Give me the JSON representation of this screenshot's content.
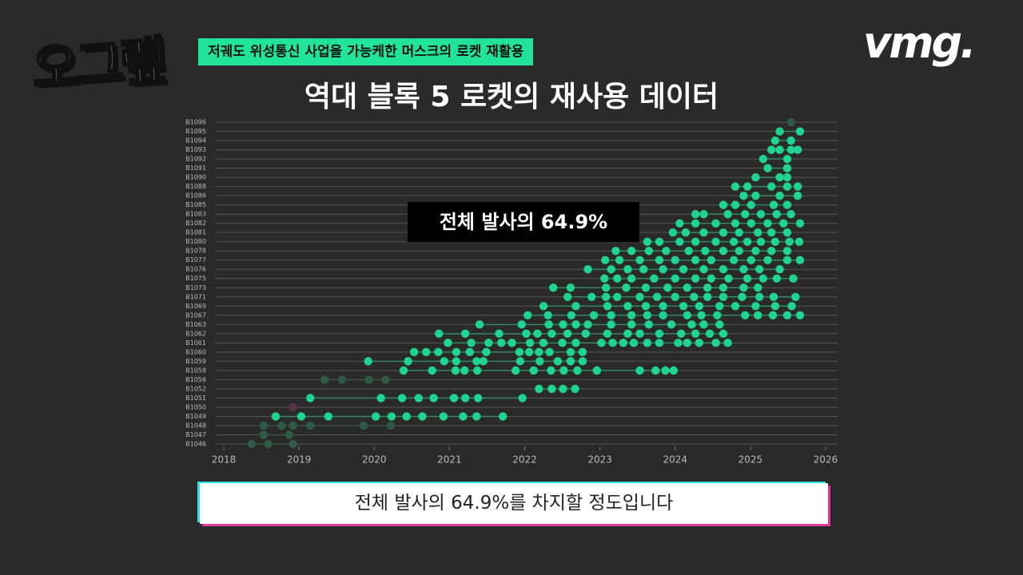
{
  "header": {
    "logo": "오그랲",
    "tag": "저궤도 위성통신 사업을 가능케한 머스크의 로켓 재활용",
    "brand": "vmg."
  },
  "chart_data": {
    "type": "dot-timeline",
    "title": "역대 블록 5 로켓의 재사용 데이터",
    "annotation": "전체 발사의 64.9%",
    "categories": [
      "B1046",
      "B1047",
      "B1048",
      "B1049",
      "B1050",
      "B1051",
      "B1052",
      "B1056",
      "B1058",
      "B1059",
      "B1060",
      "B1061",
      "B1062",
      "B1063",
      "B1067",
      "B1069",
      "B1071",
      "B1073",
      "B1075",
      "B1076",
      "B1077",
      "B1078",
      "B1080",
      "B1081",
      "B1082",
      "B1083",
      "B1085",
      "B1086",
      "B1088",
      "B1090",
      "B1091",
      "B1092",
      "B1093",
      "B1094",
      "B1095",
      "B1096"
    ],
    "values": [
      [
        2018.37,
        2018.59,
        2018.92
      ],
      [
        2018.53,
        2018.87
      ],
      [
        2018.53,
        2018.77,
        2018.92,
        2019.15,
        2019.86,
        2020.22
      ],
      [
        2018.69,
        2019.03,
        2019.39,
        2020.02,
        2020.23,
        2020.43,
        2020.64,
        2020.92,
        2021.18,
        2021.36,
        2021.71
      ],
      [
        2018.92
      ],
      [
        2019.15,
        2020.09,
        2020.37,
        2020.59,
        2020.79,
        2021.06,
        2021.21,
        2021.38,
        2021.97
      ],
      [
        2022.19,
        2022.36,
        2022.51,
        2022.67
      ],
      [
        2019.34,
        2019.57,
        2019.93,
        2020.15
      ],
      [
        2020.39,
        2020.77,
        2021.08,
        2021.2,
        2021.37,
        2021.88,
        2022.12,
        2022.35,
        2022.52,
        2022.7,
        2022.96,
        2023.53,
        2023.74,
        2023.87,
        2023.98
      ],
      [
        2019.92,
        2020.45,
        2020.93,
        2021.09,
        2021.36,
        2021.45,
        2021.94,
        2022.2,
        2022.44,
        2022.61,
        2022.77
      ],
      [
        2020.53,
        2020.69,
        2020.85,
        2021.09,
        2021.27,
        2021.49,
        2021.93,
        2022.06,
        2022.19,
        2022.33,
        2022.61,
        2022.77
      ],
      [
        2020.98,
        2021.29,
        2021.52,
        2021.69,
        2021.83,
        2022.07,
        2022.25,
        2022.5,
        2022.68,
        2023.02,
        2023.17,
        2023.31,
        2023.45,
        2023.63,
        2023.79,
        2024.04,
        2024.16,
        2024.32,
        2024.54,
        2024.7
      ],
      [
        2020.86,
        2021.21,
        2021.66,
        2022.02,
        2022.17,
        2022.36,
        2022.57,
        2022.81,
        2023.1,
        2023.37,
        2023.53,
        2023.79,
        2024.08,
        2024.27,
        2024.46,
        2024.64
      ],
      [
        2021.4,
        2021.96,
        2022.32,
        2022.51,
        2022.68,
        2022.84,
        2023.15,
        2023.42,
        2023.65,
        2023.95,
        2024.22,
        2024.38,
        2024.59
      ],
      [
        2022.04,
        2022.31,
        2022.62,
        2022.92,
        2023.15,
        2023.42,
        2023.63,
        2023.84,
        2024.16,
        2024.35,
        2024.56,
        2024.93,
        2025.1,
        2025.3,
        2025.49,
        2025.66
      ],
      [
        2022.25,
        2022.68,
        2023.1,
        2023.37,
        2023.61,
        2023.84,
        2024.11,
        2024.32,
        2024.59,
        2024.8,
        2025.07,
        2025.33,
        2025.55
      ],
      [
        2022.57,
        2022.89,
        2023.08,
        2023.23,
        2023.53,
        2023.76,
        2024.0,
        2024.25,
        2024.43,
        2024.64,
        2024.89,
        2025.12,
        2025.31,
        2025.6
      ],
      [
        2022.38,
        2022.61,
        2023.08,
        2023.35,
        2023.61,
        2023.9,
        2024.16,
        2024.43,
        2024.64,
        2024.91,
        2025.1
      ],
      [
        2023.06,
        2023.23,
        2023.42,
        2023.72,
        2024.0,
        2024.27,
        2024.48,
        2024.71,
        2024.96,
        2025.17,
        2025.35,
        2025.57
      ],
      [
        2022.84,
        2023.15,
        2023.37,
        2023.58,
        2023.84,
        2024.11,
        2024.38,
        2024.64,
        2024.91,
        2025.12,
        2025.39
      ],
      [
        2023.07,
        2023.26,
        2023.53,
        2023.79,
        2024.0,
        2024.27,
        2024.48,
        2024.78,
        2025.01,
        2025.23,
        2025.49,
        2025.66
      ],
      [
        2023.21,
        2023.42,
        2023.65,
        2023.88,
        2024.18,
        2024.4,
        2024.64,
        2024.85,
        2025.07,
        2025.28,
        2025.49
      ],
      [
        2023.63,
        2023.79,
        2024.06,
        2024.27,
        2024.54,
        2024.78,
        2024.96,
        2025.14,
        2025.33,
        2025.52,
        2025.65
      ],
      [
        2023.97,
        2024.14,
        2024.38,
        2024.64,
        2024.85,
        2025.1,
        2025.28,
        2025.49
      ],
      [
        2024.06,
        2024.27,
        2024.54,
        2024.8,
        2025.01,
        2025.23,
        2025.44,
        2025.66
      ],
      [
        2024.27,
        2024.38,
        2024.7,
        2024.93,
        2025.14,
        2025.35,
        2025.54
      ],
      [
        2024.64,
        2024.8,
        2025.01,
        2025.31,
        2025.49
      ],
      [
        2024.91,
        2025.07,
        2025.39,
        2025.63
      ],
      [
        2024.8,
        2024.96,
        2025.28,
        2025.49,
        2025.63
      ],
      [
        2025.07,
        2025.39,
        2025.49
      ],
      [
        2025.23,
        2025.49
      ],
      [
        2025.17,
        2025.49
      ],
      [
        2025.28,
        2025.39,
        2025.54,
        2025.63
      ],
      [
        2025.33,
        2025.54
      ],
      [
        2025.39,
        2025.66
      ],
      [
        2025.54
      ]
    ],
    "row_colors": [
      "#2f5a47",
      "#2f5a47",
      "#2f5a47",
      "#20d393",
      "#5a3348",
      "#20d393",
      "#20d393",
      "#2f5a47",
      "#20d393",
      "#20d393",
      "#20d393",
      "#20d393",
      "#20d393",
      "#20d393",
      "#20d393",
      "#20d393",
      "#20d393",
      "#20d393",
      "#20d393",
      "#20d393",
      "#20d393",
      "#20d393",
      "#20d393",
      "#20d393",
      "#20d393",
      "#20d393",
      "#20d393",
      "#20d393",
      "#20d393",
      "#20d393",
      "#20d393",
      "#20d393",
      "#20d393",
      "#20d393",
      "#20d393",
      "#2f5a47"
    ],
    "xlim": [
      2018,
      2026
    ],
    "xticks": [
      2018,
      2019,
      2020,
      2021,
      2022,
      2023,
      2024,
      2025,
      2026
    ]
  },
  "caption": "전체 발사의 64.9%를 차지할 정도입니다"
}
